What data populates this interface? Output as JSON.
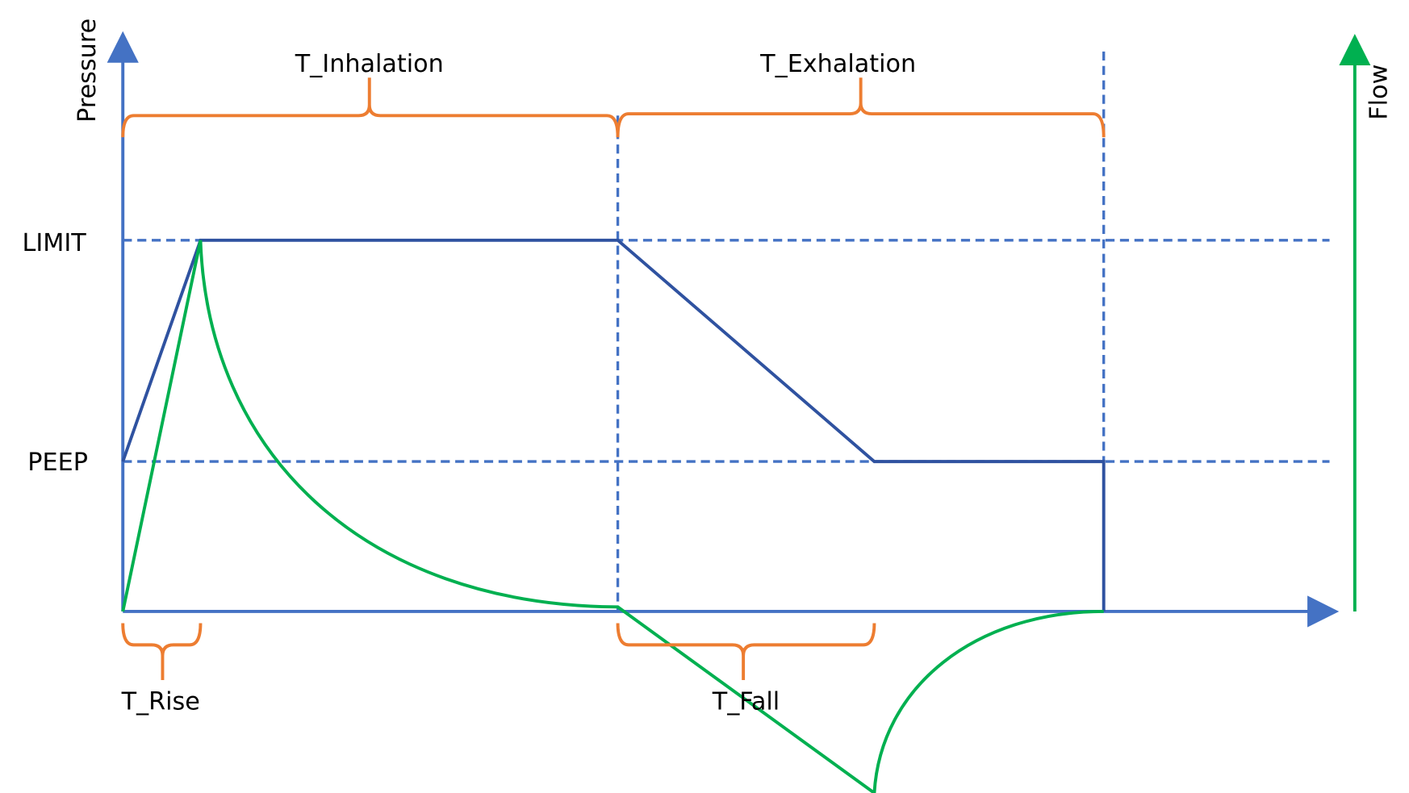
{
  "axes": {
    "pressure": "Pressure",
    "flow": "Flow"
  },
  "levels": {
    "limit": "LIMIT",
    "peep": "PEEP"
  },
  "phases": {
    "inhalation": "T_Inhalation",
    "exhalation": "T_Exhalation",
    "rise": "T_Rise",
    "fall": "T_Fall"
  }
}
